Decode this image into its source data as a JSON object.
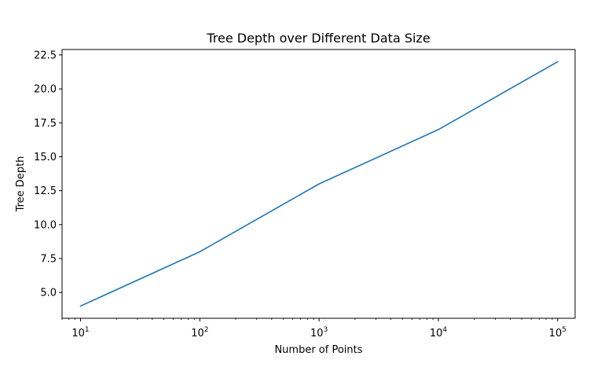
{
  "chart_data": {
    "type": "line",
    "title": "Tree Depth over Different Data Size",
    "xlabel": "Number of Points",
    "ylabel": "Tree Depth",
    "x_scale": "log",
    "x": [
      10,
      100,
      1000,
      10000,
      100000
    ],
    "series": [
      {
        "values": [
          4,
          8,
          13,
          17,
          22
        ],
        "color": "#1f77b4"
      }
    ],
    "xlim": [
      7,
      140000
    ],
    "ylim": [
      3.1,
      22.9
    ],
    "x_ticks": [
      {
        "value": 10,
        "base": "10",
        "exp": "1"
      },
      {
        "value": 100,
        "base": "10",
        "exp": "2"
      },
      {
        "value": 1000,
        "base": "10",
        "exp": "3"
      },
      {
        "value": 10000,
        "base": "10",
        "exp": "4"
      },
      {
        "value": 100000,
        "base": "10",
        "exp": "5"
      }
    ],
    "y_ticks": [
      "5.0",
      "7.5",
      "10.0",
      "12.5",
      "15.0",
      "17.5",
      "20.0",
      "22.5"
    ],
    "grid": false,
    "legend": "none"
  }
}
